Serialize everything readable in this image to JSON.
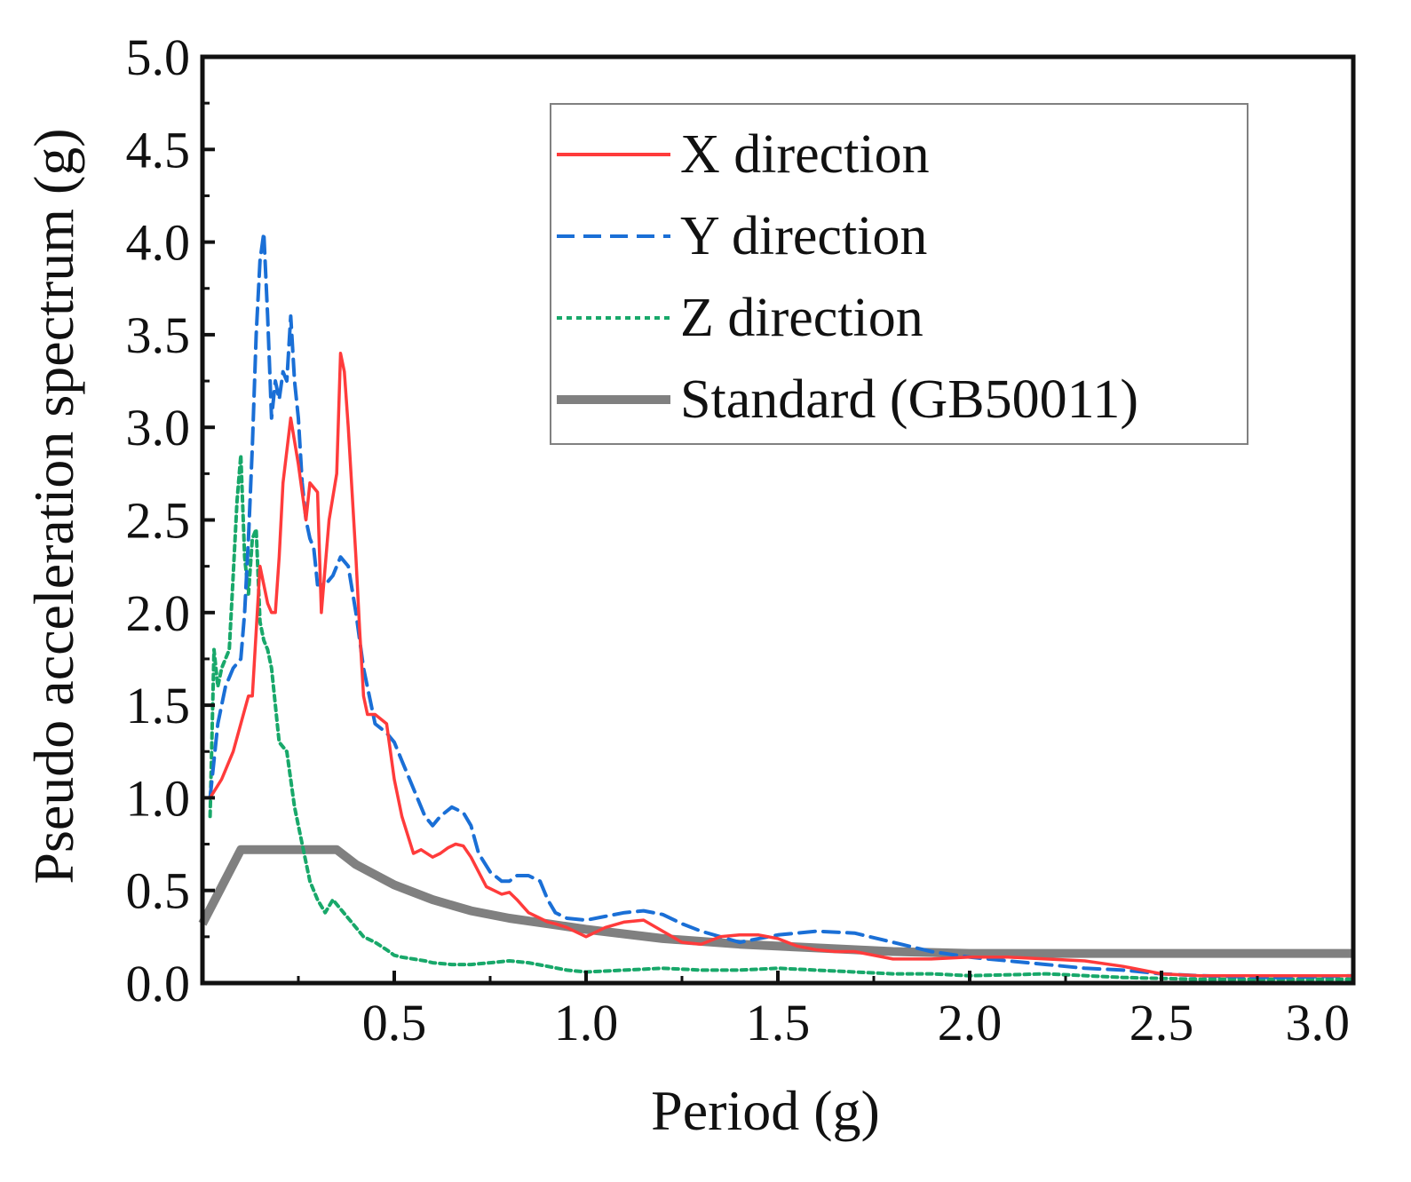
{
  "chart_data": {
    "type": "line",
    "title": "",
    "xlabel": "Period (g)",
    "ylabel": "Pseudo acceleration spectrum (g)",
    "xlim": [
      0,
      3.0
    ],
    "ylim": [
      0,
      5.0
    ],
    "xticks": [
      "0.5",
      "1.0",
      "1.5",
      "2.0",
      "2.5",
      "3.0"
    ],
    "yticks": [
      "0.0",
      "0.5",
      "1.0",
      "1.5",
      "2.0",
      "2.5",
      "3.0",
      "3.5",
      "4.0",
      "4.5",
      "5.0"
    ],
    "grid": false,
    "legend_position": "top-right",
    "colors": {
      "x_direction": "#ff3b3b",
      "y_direction": "#1a6fd6",
      "z_direction": "#18a86a",
      "standard": "#808080"
    },
    "series": [
      {
        "name": "X direction",
        "style": "solid",
        "x": [
          0.02,
          0.05,
          0.08,
          0.1,
          0.12,
          0.13,
          0.15,
          0.16,
          0.17,
          0.18,
          0.19,
          0.2,
          0.21,
          0.23,
          0.25,
          0.27,
          0.28,
          0.3,
          0.31,
          0.33,
          0.35,
          0.36,
          0.37,
          0.38,
          0.4,
          0.41,
          0.42,
          0.43,
          0.45,
          0.48,
          0.5,
          0.52,
          0.55,
          0.57,
          0.6,
          0.62,
          0.64,
          0.66,
          0.68,
          0.7,
          0.72,
          0.74,
          0.76,
          0.78,
          0.8,
          0.82,
          0.85,
          0.88,
          0.9,
          0.92,
          0.95,
          1.0,
          1.05,
          1.1,
          1.15,
          1.2,
          1.25,
          1.3,
          1.35,
          1.4,
          1.45,
          1.5,
          1.55,
          1.6,
          1.65,
          1.7,
          1.8,
          1.9,
          2.0,
          2.1,
          2.2,
          2.3,
          2.4,
          2.5,
          2.6,
          2.7,
          2.8,
          2.9,
          3.0
        ],
        "values": [
          1.0,
          1.1,
          1.25,
          1.4,
          1.55,
          1.55,
          2.25,
          2.15,
          2.05,
          2.0,
          2.0,
          2.3,
          2.7,
          3.05,
          2.8,
          2.5,
          2.7,
          2.65,
          2.0,
          2.5,
          2.75,
          3.4,
          3.3,
          3.0,
          2.3,
          1.9,
          1.55,
          1.45,
          1.45,
          1.4,
          1.1,
          0.9,
          0.7,
          0.72,
          0.68,
          0.7,
          0.73,
          0.75,
          0.74,
          0.68,
          0.6,
          0.52,
          0.5,
          0.48,
          0.49,
          0.45,
          0.38,
          0.35,
          0.33,
          0.32,
          0.3,
          0.25,
          0.3,
          0.33,
          0.34,
          0.28,
          0.22,
          0.21,
          0.25,
          0.26,
          0.26,
          0.24,
          0.2,
          0.18,
          0.17,
          0.17,
          0.13,
          0.13,
          0.14,
          0.14,
          0.13,
          0.12,
          0.09,
          0.05,
          0.04,
          0.04,
          0.04,
          0.04,
          0.04
        ]
      },
      {
        "name": "Y direction",
        "style": "dashed",
        "x": [
          0.02,
          0.04,
          0.06,
          0.08,
          0.1,
          0.11,
          0.12,
          0.13,
          0.14,
          0.15,
          0.16,
          0.17,
          0.18,
          0.19,
          0.2,
          0.21,
          0.22,
          0.23,
          0.24,
          0.25,
          0.26,
          0.27,
          0.28,
          0.29,
          0.3,
          0.32,
          0.34,
          0.36,
          0.38,
          0.4,
          0.42,
          0.45,
          0.48,
          0.5,
          0.52,
          0.55,
          0.58,
          0.6,
          0.62,
          0.65,
          0.68,
          0.7,
          0.72,
          0.75,
          0.78,
          0.8,
          0.82,
          0.85,
          0.88,
          0.9,
          0.92,
          0.95,
          1.0,
          1.05,
          1.1,
          1.15,
          1.2,
          1.25,
          1.3,
          1.35,
          1.4,
          1.5,
          1.6,
          1.7,
          1.8,
          1.9,
          2.0,
          2.1,
          2.2,
          2.3,
          2.4,
          2.5,
          2.6,
          2.8,
          3.0
        ],
        "values": [
          1.0,
          1.4,
          1.6,
          1.7,
          1.75,
          2.0,
          2.4,
          2.9,
          3.5,
          3.9,
          4.05,
          3.6,
          3.05,
          3.25,
          3.15,
          3.3,
          3.25,
          3.6,
          3.25,
          3.05,
          2.7,
          2.5,
          2.4,
          2.35,
          2.15,
          2.15,
          2.2,
          2.3,
          2.25,
          2.0,
          1.7,
          1.4,
          1.35,
          1.3,
          1.2,
          1.05,
          0.9,
          0.85,
          0.9,
          0.95,
          0.92,
          0.85,
          0.7,
          0.6,
          0.55,
          0.55,
          0.58,
          0.58,
          0.55,
          0.45,
          0.38,
          0.35,
          0.34,
          0.36,
          0.38,
          0.39,
          0.37,
          0.32,
          0.28,
          0.25,
          0.22,
          0.26,
          0.28,
          0.27,
          0.22,
          0.17,
          0.14,
          0.12,
          0.1,
          0.08,
          0.07,
          0.05,
          0.04,
          0.03,
          0.04
        ]
      },
      {
        "name": "Z direction",
        "style": "dotted",
        "x": [
          0.02,
          0.03,
          0.04,
          0.05,
          0.06,
          0.07,
          0.08,
          0.09,
          0.1,
          0.11,
          0.12,
          0.13,
          0.14,
          0.15,
          0.16,
          0.17,
          0.18,
          0.19,
          0.2,
          0.22,
          0.24,
          0.26,
          0.28,
          0.3,
          0.32,
          0.34,
          0.36,
          0.38,
          0.4,
          0.42,
          0.45,
          0.48,
          0.5,
          0.52,
          0.55,
          0.58,
          0.6,
          0.65,
          0.7,
          0.75,
          0.8,
          0.85,
          0.9,
          0.95,
          1.0,
          1.1,
          1.2,
          1.3,
          1.4,
          1.5,
          1.6,
          1.7,
          1.8,
          1.9,
          2.0,
          2.2,
          2.4,
          2.6,
          2.8,
          3.0
        ],
        "values": [
          0.9,
          1.8,
          1.6,
          1.7,
          1.75,
          1.8,
          2.2,
          2.6,
          2.85,
          2.3,
          2.1,
          2.4,
          2.45,
          1.95,
          1.85,
          1.8,
          1.7,
          1.5,
          1.3,
          1.25,
          0.95,
          0.75,
          0.55,
          0.45,
          0.38,
          0.45,
          0.4,
          0.35,
          0.3,
          0.25,
          0.22,
          0.18,
          0.15,
          0.14,
          0.13,
          0.12,
          0.11,
          0.1,
          0.1,
          0.11,
          0.12,
          0.11,
          0.09,
          0.07,
          0.06,
          0.07,
          0.08,
          0.07,
          0.07,
          0.08,
          0.07,
          0.06,
          0.05,
          0.05,
          0.04,
          0.05,
          0.03,
          0.02,
          0.02,
          0.02
        ]
      },
      {
        "name": "Standard (GB50011)",
        "style": "thick",
        "x": [
          0.0,
          0.1,
          0.35,
          0.4,
          0.5,
          0.6,
          0.7,
          0.8,
          0.9,
          1.0,
          1.2,
          1.4,
          1.6,
          1.8,
          2.0,
          2.2,
          2.5,
          3.0
        ],
        "values": [
          0.32,
          0.72,
          0.72,
          0.64,
          0.53,
          0.45,
          0.39,
          0.35,
          0.32,
          0.29,
          0.24,
          0.21,
          0.19,
          0.17,
          0.16,
          0.16,
          0.16,
          0.16
        ]
      }
    ]
  }
}
